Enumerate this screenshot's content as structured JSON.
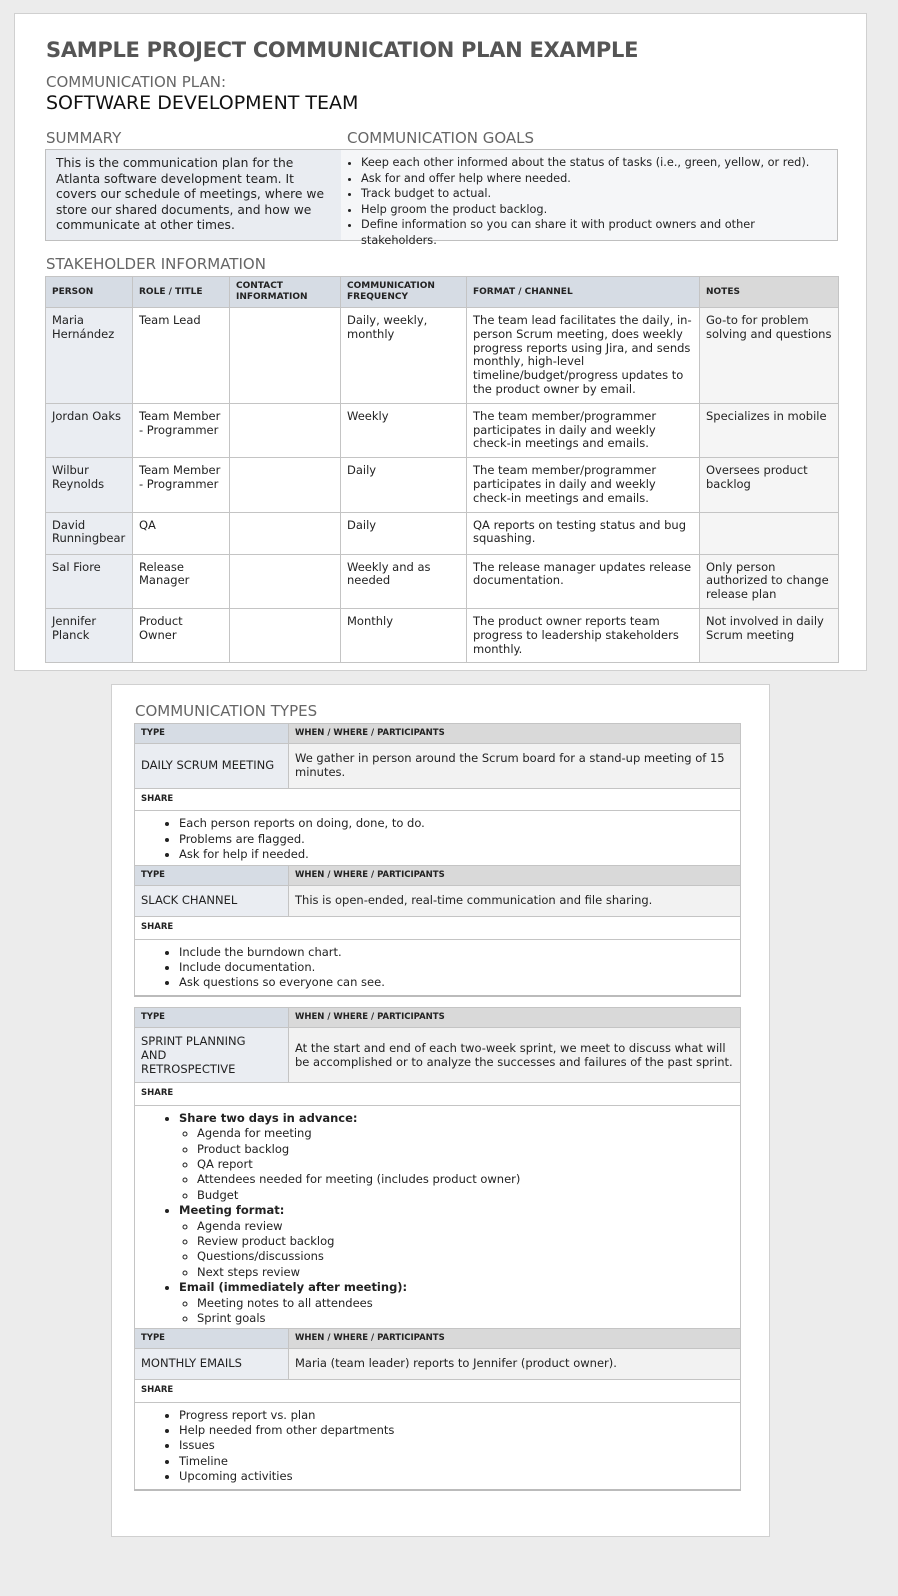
{
  "title": "SAMPLE PROJECT COMMUNICATION PLAN EXAMPLE",
  "subtitle_label": "COMMUNICATION PLAN:",
  "subtitle": "SOFTWARE DEVELOPMENT TEAM",
  "summary": {
    "heading": "SUMMARY",
    "text": "This is the communication plan for the Atlanta software development team. It covers our schedule of meetings, where we store our shared documents, and how we communicate at other times."
  },
  "goals": {
    "heading": "COMMUNICATION GOALS",
    "items": [
      "Keep each other informed about the status of tasks (i.e., green, yellow, or red).",
      "Ask for and offer help where needed.",
      "Track budget to actual.",
      "Help groom the product backlog.",
      "Define information so you can share it with product owners and other stakeholders."
    ]
  },
  "stakeholders": {
    "heading": "STAKEHOLDER INFORMATION",
    "columns": [
      "PERSON",
      "ROLE / TITLE",
      "CONTACT INFORMATION",
      "COMMUNICATION FREQUENCY",
      "FORMAT / CHANNEL",
      "NOTES"
    ],
    "rows": [
      [
        "Maria Hernández",
        "Team Lead",
        "",
        "Daily, weekly, monthly",
        "The team lead facilitates the daily, in-person Scrum meeting, does weekly progress reports using Jira, and sends monthly, high-level timeline/budget/progress updates to the product owner by email.",
        "Go-to for problem solving and questions"
      ],
      [
        "Jordan Oaks",
        "Team Member - Programmer",
        "",
        "Weekly",
        "The team member/programmer participates in daily and weekly check-in meetings and emails.",
        "Specializes in mobile"
      ],
      [
        "Wilbur Reynolds",
        "Team Member - Programmer",
        "",
        "Daily",
        "The team member/programmer participates in daily and weekly check-in meetings and emails.",
        "Oversees product backlog"
      ],
      [
        "David Runningbear",
        "QA",
        "",
        "Daily",
        "QA reports on testing status and bug squashing.",
        ""
      ],
      [
        "Sal Fiore",
        "Release Manager",
        "",
        "Weekly and as needed",
        "The release manager updates release documentation.",
        "Only person authorized to change release plan"
      ],
      [
        "Jennifer Planck",
        "Product Owner",
        "",
        "Monthly",
        "The product owner reports team progress to leadership stakeholders monthly.",
        "Not involved in daily Scrum meeting"
      ]
    ]
  },
  "comm_types": {
    "heading": "COMMUNICATION TYPES",
    "type_label": "TYPE",
    "when_label": "WHEN / WHERE / PARTICIPANTS",
    "share_label": "SHARE",
    "blocks": [
      {
        "type": "DAILY SCRUM MEETING",
        "when": "We gather in person around the Scrum board for a stand-up meeting of 15 minutes.",
        "share": [
          "Each person reports on doing, done, to do.",
          "Problems are flagged.",
          "Ask for help if needed."
        ]
      },
      {
        "type": "SLACK CHANNEL",
        "when": "This is open-ended, real-time communication and file sharing.",
        "share": [
          "Include the burndown chart.",
          "Include documentation.",
          "Ask questions so everyone can see."
        ]
      },
      {
        "type": "SPRINT PLANNING AND RETROSPECTIVE",
        "when": "At the start and end of each two-week sprint, we meet to discuss what will be accomplished or to analyze the successes and failures of the past sprint.",
        "share_groups": [
          {
            "label": "Share two days in advance:",
            "items": [
              "Agenda for meeting",
              "Product backlog",
              "QA report",
              "Attendees needed for meeting (includes product owner)",
              "Budget"
            ]
          },
          {
            "label": "Meeting format:",
            "items": [
              "Agenda review",
              "Review product backlog",
              "Questions/discussions",
              "Next steps review"
            ]
          },
          {
            "label": "Email (immediately after meeting):",
            "items": [
              "Meeting notes to all attendees",
              "Sprint goals"
            ]
          }
        ]
      },
      {
        "type": "MONTHLY EMAILS",
        "when": "Maria (team leader) reports to Jennifer (product owner).",
        "share": [
          "Progress report vs. plan",
          "Help needed from other departments",
          "Issues",
          "Timeline",
          "Upcoming activities"
        ]
      }
    ]
  }
}
